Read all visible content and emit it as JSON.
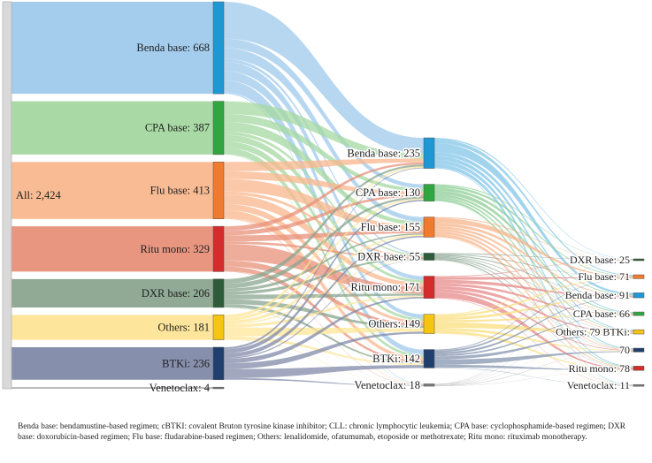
{
  "footnote": "Benda base: bendamustine-based regimen; cBTKI: covalent Bruton tyrosine kinase inhibitor; CLL: chronic lymphocytic leukemia; CPA base: cyclophosphamide-based regimen; DXR base: doxorubicin-based regimen; Flu base: fludarabine-based regimen; Others: lenalidomide, ofatumumab, etoposide or methotrexate; Ritu mono: rituximab monotherapy.",
  "chart_data": {
    "type": "sankey",
    "root": {
      "id": "all",
      "label": "All: 2,424",
      "color": "#d9d9d9"
    },
    "stage1": [
      {
        "id": "s1-benda",
        "label": "Benda base: 668",
        "value": 668,
        "color": "#1f97d5",
        "flow": "#9fc9ec"
      },
      {
        "id": "s1-cpa",
        "label": "CPA base: 387",
        "value": 387,
        "color": "#30a640",
        "flow": "#a4d8a0"
      },
      {
        "id": "s1-flu",
        "label": "Flu base: 413",
        "value": 413,
        "color": "#f07a2d",
        "flow": "#f9b78d"
      },
      {
        "id": "s1-ritu",
        "label": "Ritu mono: 329",
        "value": 329,
        "color": "#d42b2b",
        "flow": "#e8907a"
      },
      {
        "id": "s1-dxr",
        "label": "DXR base: 206",
        "value": 206,
        "color": "#2d5c3a",
        "flow": "#8aa58f"
      },
      {
        "id": "s1-others",
        "label": "Others: 181",
        "value": 181,
        "color": "#f6c512",
        "flow": "#fde597"
      },
      {
        "id": "s1-btki",
        "label": "BTKi: 236",
        "value": 236,
        "color": "#203f6e",
        "flow": "#8089a8"
      },
      {
        "id": "s1-veneto",
        "label": "Venetoclax: 4",
        "value": 4,
        "color": "#7a7a7a",
        "flow": "#b0b0b0"
      }
    ],
    "stage2": [
      {
        "id": "s2-benda",
        "label": "Benda base: 235",
        "value": 235,
        "color": "#1f97d5"
      },
      {
        "id": "s2-cpa",
        "label": "CPA base: 130",
        "value": 130,
        "color": "#30a640"
      },
      {
        "id": "s2-flu",
        "label": "Flu base: 155",
        "value": 155,
        "color": "#f07a2d"
      },
      {
        "id": "s2-dxr",
        "label": "DXR base: 55",
        "value": 55,
        "color": "#2d5c3a"
      },
      {
        "id": "s2-ritu",
        "label": "Ritu mono: 171",
        "value": 171,
        "color": "#d42b2b"
      },
      {
        "id": "s2-others",
        "label": "Others: 149",
        "value": 149,
        "color": "#f6c512"
      },
      {
        "id": "s2-btki",
        "label": "BTKi: 142",
        "value": 142,
        "color": "#203f6e"
      },
      {
        "id": "s2-veneto",
        "label": "Venetoclax: 18",
        "value": 18,
        "color": "#7a7a7a"
      }
    ],
    "stage3": [
      {
        "id": "s3-dxr",
        "label": "DXR base: 25",
        "value": 25,
        "color": "#2d5c3a"
      },
      {
        "id": "s3-flu",
        "label": "Flu base: 71",
        "value": 71,
        "color": "#f07a2d"
      },
      {
        "id": "s3-benda",
        "label": "Benda base: 91",
        "value": 91,
        "color": "#1f97d5"
      },
      {
        "id": "s3-cpa",
        "label": "CPA base: 66",
        "value": 66,
        "color": "#30a640"
      },
      {
        "id": "s3-others",
        "label": "Others: 79 BTKi:",
        "value": 79,
        "color": "#f6c512"
      },
      {
        "id": "s3-btki",
        "label": "70",
        "value": 70,
        "color": "#203f6e"
      },
      {
        "id": "s3-ritu",
        "label": "Ritu mono: 78",
        "value": 78,
        "color": "#d42b2b"
      },
      {
        "id": "s3-veneto",
        "label": "Venetoclax: 11",
        "value": 11,
        "color": "#7a7a7a"
      }
    ],
    "flows_stage1_to_stage2": [
      [
        "s1-benda",
        "s2-benda",
        120
      ],
      [
        "s1-benda",
        "s2-cpa",
        30
      ],
      [
        "s1-benda",
        "s2-flu",
        35
      ],
      [
        "s1-benda",
        "s2-dxr",
        10
      ],
      [
        "s1-benda",
        "s2-ritu",
        30
      ],
      [
        "s1-benda",
        "s2-others",
        30
      ],
      [
        "s1-benda",
        "s2-btki",
        40
      ],
      [
        "s1-benda",
        "s2-veneto",
        4
      ],
      [
        "s1-cpa",
        "s2-benda",
        40
      ],
      [
        "s1-cpa",
        "s2-cpa",
        25
      ],
      [
        "s1-cpa",
        "s2-flu",
        30
      ],
      [
        "s1-cpa",
        "s2-dxr",
        10
      ],
      [
        "s1-cpa",
        "s2-ritu",
        20
      ],
      [
        "s1-cpa",
        "s2-others",
        20
      ],
      [
        "s1-cpa",
        "s2-btki",
        20
      ],
      [
        "s1-cpa",
        "s2-veneto",
        2
      ],
      [
        "s1-flu",
        "s2-benda",
        30
      ],
      [
        "s1-flu",
        "s2-cpa",
        25
      ],
      [
        "s1-flu",
        "s2-flu",
        40
      ],
      [
        "s1-flu",
        "s2-dxr",
        10
      ],
      [
        "s1-flu",
        "s2-ritu",
        30
      ],
      [
        "s1-flu",
        "s2-others",
        20
      ],
      [
        "s1-flu",
        "s2-btki",
        25
      ],
      [
        "s1-flu",
        "s2-veneto",
        3
      ],
      [
        "s1-ritu",
        "s2-benda",
        15
      ],
      [
        "s1-ritu",
        "s2-cpa",
        15
      ],
      [
        "s1-ritu",
        "s2-flu",
        20
      ],
      [
        "s1-ritu",
        "s2-dxr",
        8
      ],
      [
        "s1-ritu",
        "s2-ritu",
        55
      ],
      [
        "s1-ritu",
        "s2-others",
        20
      ],
      [
        "s1-ritu",
        "s2-btki",
        15
      ],
      [
        "s1-ritu",
        "s2-veneto",
        2
      ],
      [
        "s1-dxr",
        "s2-benda",
        15
      ],
      [
        "s1-dxr",
        "s2-cpa",
        15
      ],
      [
        "s1-dxr",
        "s2-flu",
        10
      ],
      [
        "s1-dxr",
        "s2-dxr",
        10
      ],
      [
        "s1-dxr",
        "s2-ritu",
        15
      ],
      [
        "s1-dxr",
        "s2-others",
        15
      ],
      [
        "s1-dxr",
        "s2-btki",
        10
      ],
      [
        "s1-dxr",
        "s2-veneto",
        1
      ],
      [
        "s1-others",
        "s2-benda",
        10
      ],
      [
        "s1-others",
        "s2-cpa",
        10
      ],
      [
        "s1-others",
        "s2-flu",
        10
      ],
      [
        "s1-others",
        "s2-dxr",
        4
      ],
      [
        "s1-others",
        "s2-ritu",
        10
      ],
      [
        "s1-others",
        "s2-others",
        30
      ],
      [
        "s1-others",
        "s2-btki",
        10
      ],
      [
        "s1-others",
        "s2-veneto",
        2
      ],
      [
        "s1-btki",
        "s2-benda",
        5
      ],
      [
        "s1-btki",
        "s2-cpa",
        10
      ],
      [
        "s1-btki",
        "s2-flu",
        10
      ],
      [
        "s1-btki",
        "s2-dxr",
        3
      ],
      [
        "s1-btki",
        "s2-ritu",
        11
      ],
      [
        "s1-btki",
        "s2-others",
        14
      ],
      [
        "s1-btki",
        "s2-btki",
        22
      ],
      [
        "s1-btki",
        "s2-veneto",
        4
      ]
    ],
    "flows_stage2_to_stage3": [
      [
        "s2-benda",
        "s3-dxr",
        5
      ],
      [
        "s2-benda",
        "s3-flu",
        15
      ],
      [
        "s2-benda",
        "s3-benda",
        35
      ],
      [
        "s2-benda",
        "s3-cpa",
        15
      ],
      [
        "s2-benda",
        "s3-others",
        15
      ],
      [
        "s2-benda",
        "s3-btki",
        15
      ],
      [
        "s2-benda",
        "s3-ritu",
        15
      ],
      [
        "s2-benda",
        "s3-veneto",
        3
      ],
      [
        "s2-cpa",
        "s3-dxr",
        4
      ],
      [
        "s2-cpa",
        "s3-flu",
        10
      ],
      [
        "s2-cpa",
        "s3-benda",
        12
      ],
      [
        "s2-cpa",
        "s3-cpa",
        15
      ],
      [
        "s2-cpa",
        "s3-others",
        10
      ],
      [
        "s2-cpa",
        "s3-btki",
        8
      ],
      [
        "s2-cpa",
        "s3-ritu",
        10
      ],
      [
        "s2-cpa",
        "s3-veneto",
        1
      ],
      [
        "s2-flu",
        "s3-dxr",
        4
      ],
      [
        "s2-flu",
        "s3-flu",
        20
      ],
      [
        "s2-flu",
        "s3-benda",
        12
      ],
      [
        "s2-flu",
        "s3-cpa",
        10
      ],
      [
        "s2-flu",
        "s3-others",
        10
      ],
      [
        "s2-flu",
        "s3-btki",
        10
      ],
      [
        "s2-flu",
        "s3-ritu",
        12
      ],
      [
        "s2-flu",
        "s3-veneto",
        2
      ],
      [
        "s2-dxr",
        "s3-dxr",
        3
      ],
      [
        "s2-dxr",
        "s3-flu",
        3
      ],
      [
        "s2-dxr",
        "s3-benda",
        4
      ],
      [
        "s2-dxr",
        "s3-cpa",
        3
      ],
      [
        "s2-dxr",
        "s3-others",
        4
      ],
      [
        "s2-dxr",
        "s3-btki",
        3
      ],
      [
        "s2-dxr",
        "s3-ritu",
        4
      ],
      [
        "s2-dxr",
        "s3-veneto",
        1
      ],
      [
        "s2-ritu",
        "s3-dxr",
        3
      ],
      [
        "s2-ritu",
        "s3-flu",
        10
      ],
      [
        "s2-ritu",
        "s3-benda",
        12
      ],
      [
        "s2-ritu",
        "s3-cpa",
        10
      ],
      [
        "s2-ritu",
        "s3-others",
        12
      ],
      [
        "s2-ritu",
        "s3-btki",
        10
      ],
      [
        "s2-ritu",
        "s3-ritu",
        20
      ],
      [
        "s2-ritu",
        "s3-veneto",
        2
      ],
      [
        "s2-others",
        "s3-dxr",
        3
      ],
      [
        "s2-others",
        "s3-flu",
        8
      ],
      [
        "s2-others",
        "s3-benda",
        10
      ],
      [
        "s2-others",
        "s3-cpa",
        8
      ],
      [
        "s2-others",
        "s3-others",
        20
      ],
      [
        "s2-others",
        "s3-btki",
        10
      ],
      [
        "s2-others",
        "s3-ritu",
        10
      ],
      [
        "s2-others",
        "s3-veneto",
        1
      ],
      [
        "s2-btki",
        "s3-dxr",
        2
      ],
      [
        "s2-btki",
        "s3-flu",
        4
      ],
      [
        "s2-btki",
        "s3-benda",
        5
      ],
      [
        "s2-btki",
        "s3-cpa",
        4
      ],
      [
        "s2-btki",
        "s3-others",
        7
      ],
      [
        "s2-btki",
        "s3-btki",
        12
      ],
      [
        "s2-btki",
        "s3-ritu",
        6
      ],
      [
        "s2-btki",
        "s3-veneto",
        1
      ],
      [
        "s2-veneto",
        "s3-dxr",
        1
      ],
      [
        "s2-veneto",
        "s3-flu",
        1
      ],
      [
        "s2-veneto",
        "s3-benda",
        1
      ],
      [
        "s2-veneto",
        "s3-cpa",
        1
      ],
      [
        "s2-veneto",
        "s3-others",
        1
      ],
      [
        "s2-veneto",
        "s3-btki",
        2
      ],
      [
        "s2-veneto",
        "s3-ritu",
        1
      ]
    ]
  }
}
